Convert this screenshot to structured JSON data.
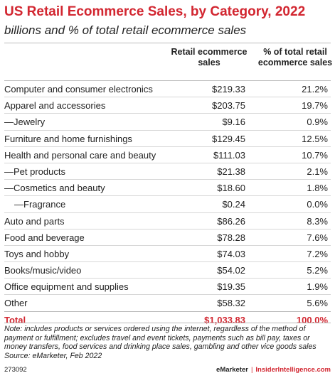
{
  "title": "US Retail Ecommerce Sales, by Category, 2022",
  "subtitle": "billions and % of total retail ecommerce sales",
  "chart_data": {
    "type": "table",
    "columns": [
      "Retail ecommerce sales",
      "% of total retail ecommerce sales"
    ],
    "rows": [
      {
        "label": "Computer and consumer electronics",
        "sales": "$219.33",
        "share": "21.2%",
        "indent": 0
      },
      {
        "label": "Apparel and accessories",
        "sales": "$203.75",
        "share": "19.7%",
        "indent": 0
      },
      {
        "label": "—Jewelry",
        "sales": "$9.16",
        "share": "0.9%",
        "indent": 1
      },
      {
        "label": "Furniture and home furnishings",
        "sales": "$129.45",
        "share": "12.5%",
        "indent": 0
      },
      {
        "label": "Health and personal care and beauty",
        "sales": "$111.03",
        "share": "10.7%",
        "indent": 0
      },
      {
        "label": "—Pet products",
        "sales": "$21.38",
        "share": "2.1%",
        "indent": 1
      },
      {
        "label": "—Cosmetics and beauty",
        "sales": "$18.60",
        "share": "1.8%",
        "indent": 1
      },
      {
        "label": "—Fragrance",
        "sales": "$0.24",
        "share": "0.0%",
        "indent": 2
      },
      {
        "label": "Auto and parts",
        "sales": "$86.26",
        "share": "8.3%",
        "indent": 0
      },
      {
        "label": "Food and beverage",
        "sales": "$78.28",
        "share": "7.6%",
        "indent": 0
      },
      {
        "label": "Toys and hobby",
        "sales": "$74.03",
        "share": "7.2%",
        "indent": 0
      },
      {
        "label": "Books/music/video",
        "sales": "$54.02",
        "share": "5.2%",
        "indent": 0
      },
      {
        "label": "Office equipment and supplies",
        "sales": "$19.35",
        "share": "1.9%",
        "indent": 0
      },
      {
        "label": "Other",
        "sales": "$58.32",
        "share": "5.6%",
        "indent": 0
      }
    ],
    "total": {
      "label": "Total",
      "sales": "$1,033.83",
      "share": "100.0%"
    }
  },
  "header": {
    "col1": "Retail ecommerce sales",
    "col2": "% of total retail ecommerce sales"
  },
  "note": "Note: includes products or services ordered using the internet, regardless of the method of payment or fulfillment; excludes travel and event tickets, payments such as bill pay, taxes or money transfers, food services and drinking place sales, gambling and other vice goods sales",
  "source": "Source: eMarketer, Feb 2022",
  "footer": {
    "id": "273092",
    "brand": "eMarketer",
    "separator": "|",
    "site": "InsiderIntelligence.com"
  },
  "colors": {
    "accent": "#d22630",
    "text": "#222222",
    "rule": "#bbbbbb"
  }
}
